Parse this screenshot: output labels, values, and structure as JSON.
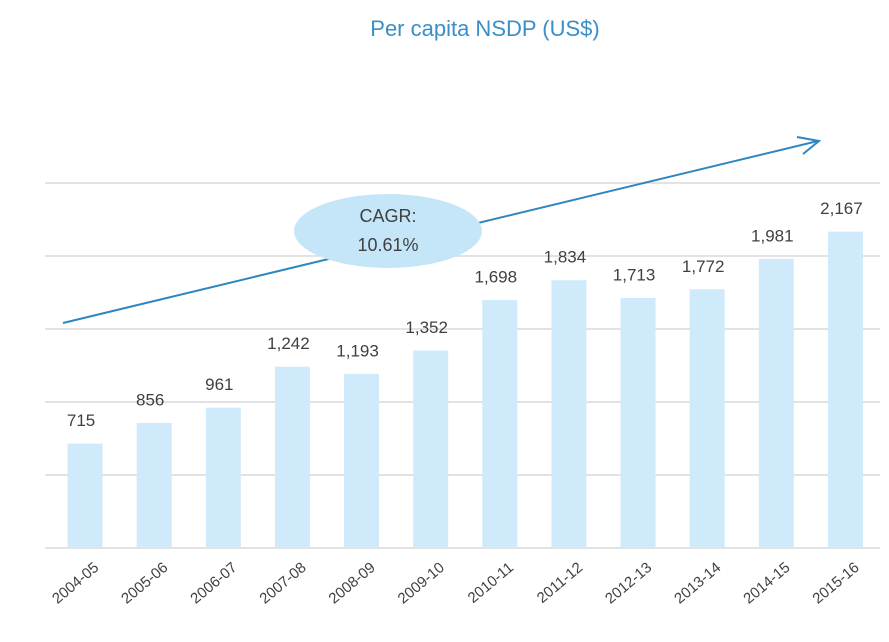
{
  "chart_data": {
    "type": "bar",
    "title": "Per capita NSDP (US$)",
    "categories": [
      "2004-05",
      "2005-06",
      "2006-07",
      "2007-08",
      "2008-09",
      "2009-10",
      "2010-11",
      "2011-12",
      "2012-13",
      "2013-14",
      "2014-15",
      "2015-16"
    ],
    "values": [
      715,
      856,
      961,
      1242,
      1193,
      1352,
      1698,
      1834,
      1713,
      1772,
      1981,
      2167
    ],
    "value_labels": [
      "715",
      "856",
      "961",
      "1,242",
      "1,193",
      "1,352",
      "1,698",
      "1,834",
      "1,713",
      "1,772",
      "1,981",
      "2,167"
    ],
    "color": "#cfeafb",
    "ylim": [
      0,
      2500
    ],
    "yticks": [
      0,
      500,
      1000,
      1500,
      2000,
      2500
    ],
    "grid": true,
    "show_tick_labels": false,
    "annotation": [
      "CAGR:",
      "10.61%"
    ]
  }
}
